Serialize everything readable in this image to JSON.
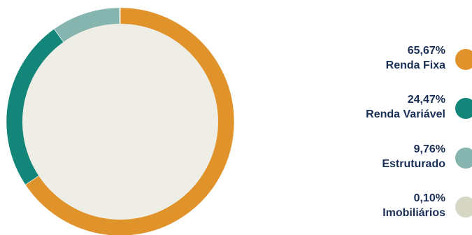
{
  "chart_data": {
    "type": "pie",
    "variant": "donut",
    "title": "",
    "slices": [
      {
        "label": "Renda Fixa",
        "value_label": "65,67%",
        "value": 65.67,
        "color": "#e0922b"
      },
      {
        "label": "Renda Variável",
        "value_label": "24,47%",
        "value": 24.47,
        "color": "#138679"
      },
      {
        "label": "Estruturado",
        "value_label": "9,76%",
        "value": 9.76,
        "color": "#86b5b0"
      },
      {
        "label": "Imobiliários",
        "value_label": "0,10%",
        "value": 0.1,
        "color": "#d6d8c5"
      }
    ],
    "center_color": "#efeee6",
    "start_angle": "top, clockwise",
    "legend_position": "right"
  }
}
